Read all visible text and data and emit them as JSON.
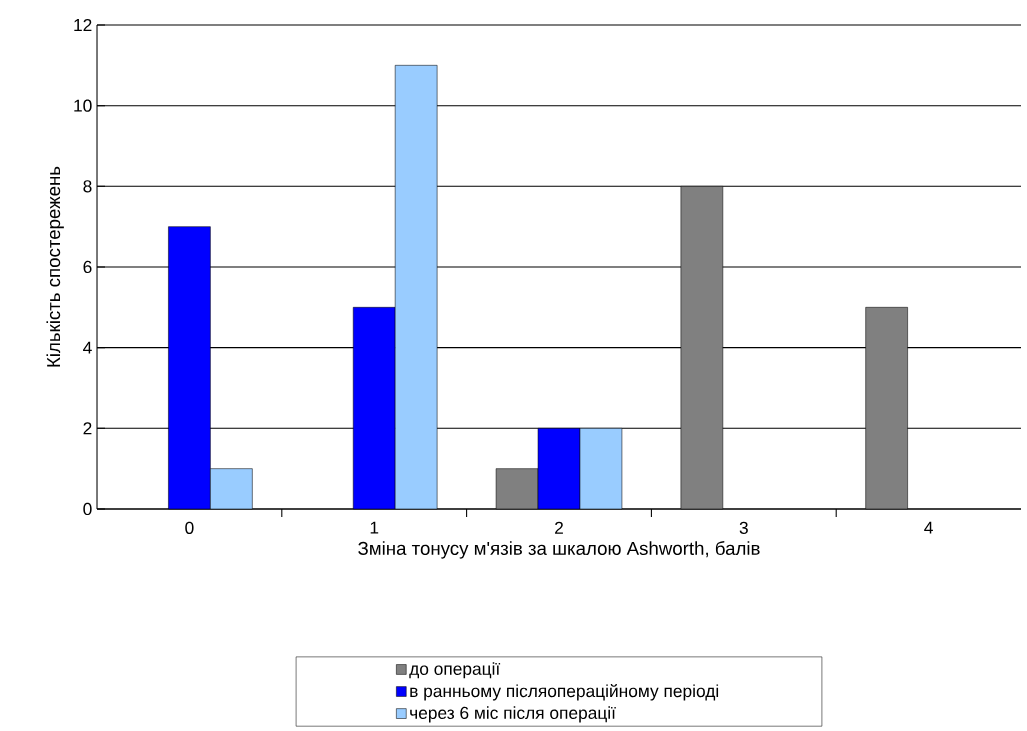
{
  "chart_data": {
    "type": "bar",
    "xlabel": "Зміна тонусу м'язів за шкалою Ashworth, балів",
    "ylabel": "Кількість спостережень",
    "categories": [
      "0",
      "1",
      "2",
      "3",
      "4"
    ],
    "series": [
      {
        "name": "до операції",
        "color": "#808080",
        "values": [
          null,
          null,
          1,
          8,
          5
        ]
      },
      {
        "name": "в ранньому післяопераційному періоді",
        "color": "#0000ff",
        "values": [
          7,
          5,
          2,
          null,
          null
        ]
      },
      {
        "name": "через 6 міс після операції",
        "color": "#99ccff",
        "values": [
          1,
          11,
          2,
          null,
          null
        ]
      }
    ],
    "ylim": [
      0,
      12
    ],
    "yticks": [
      0,
      2,
      4,
      6,
      8,
      10,
      12
    ],
    "grid": "y",
    "legend": "bottom"
  }
}
